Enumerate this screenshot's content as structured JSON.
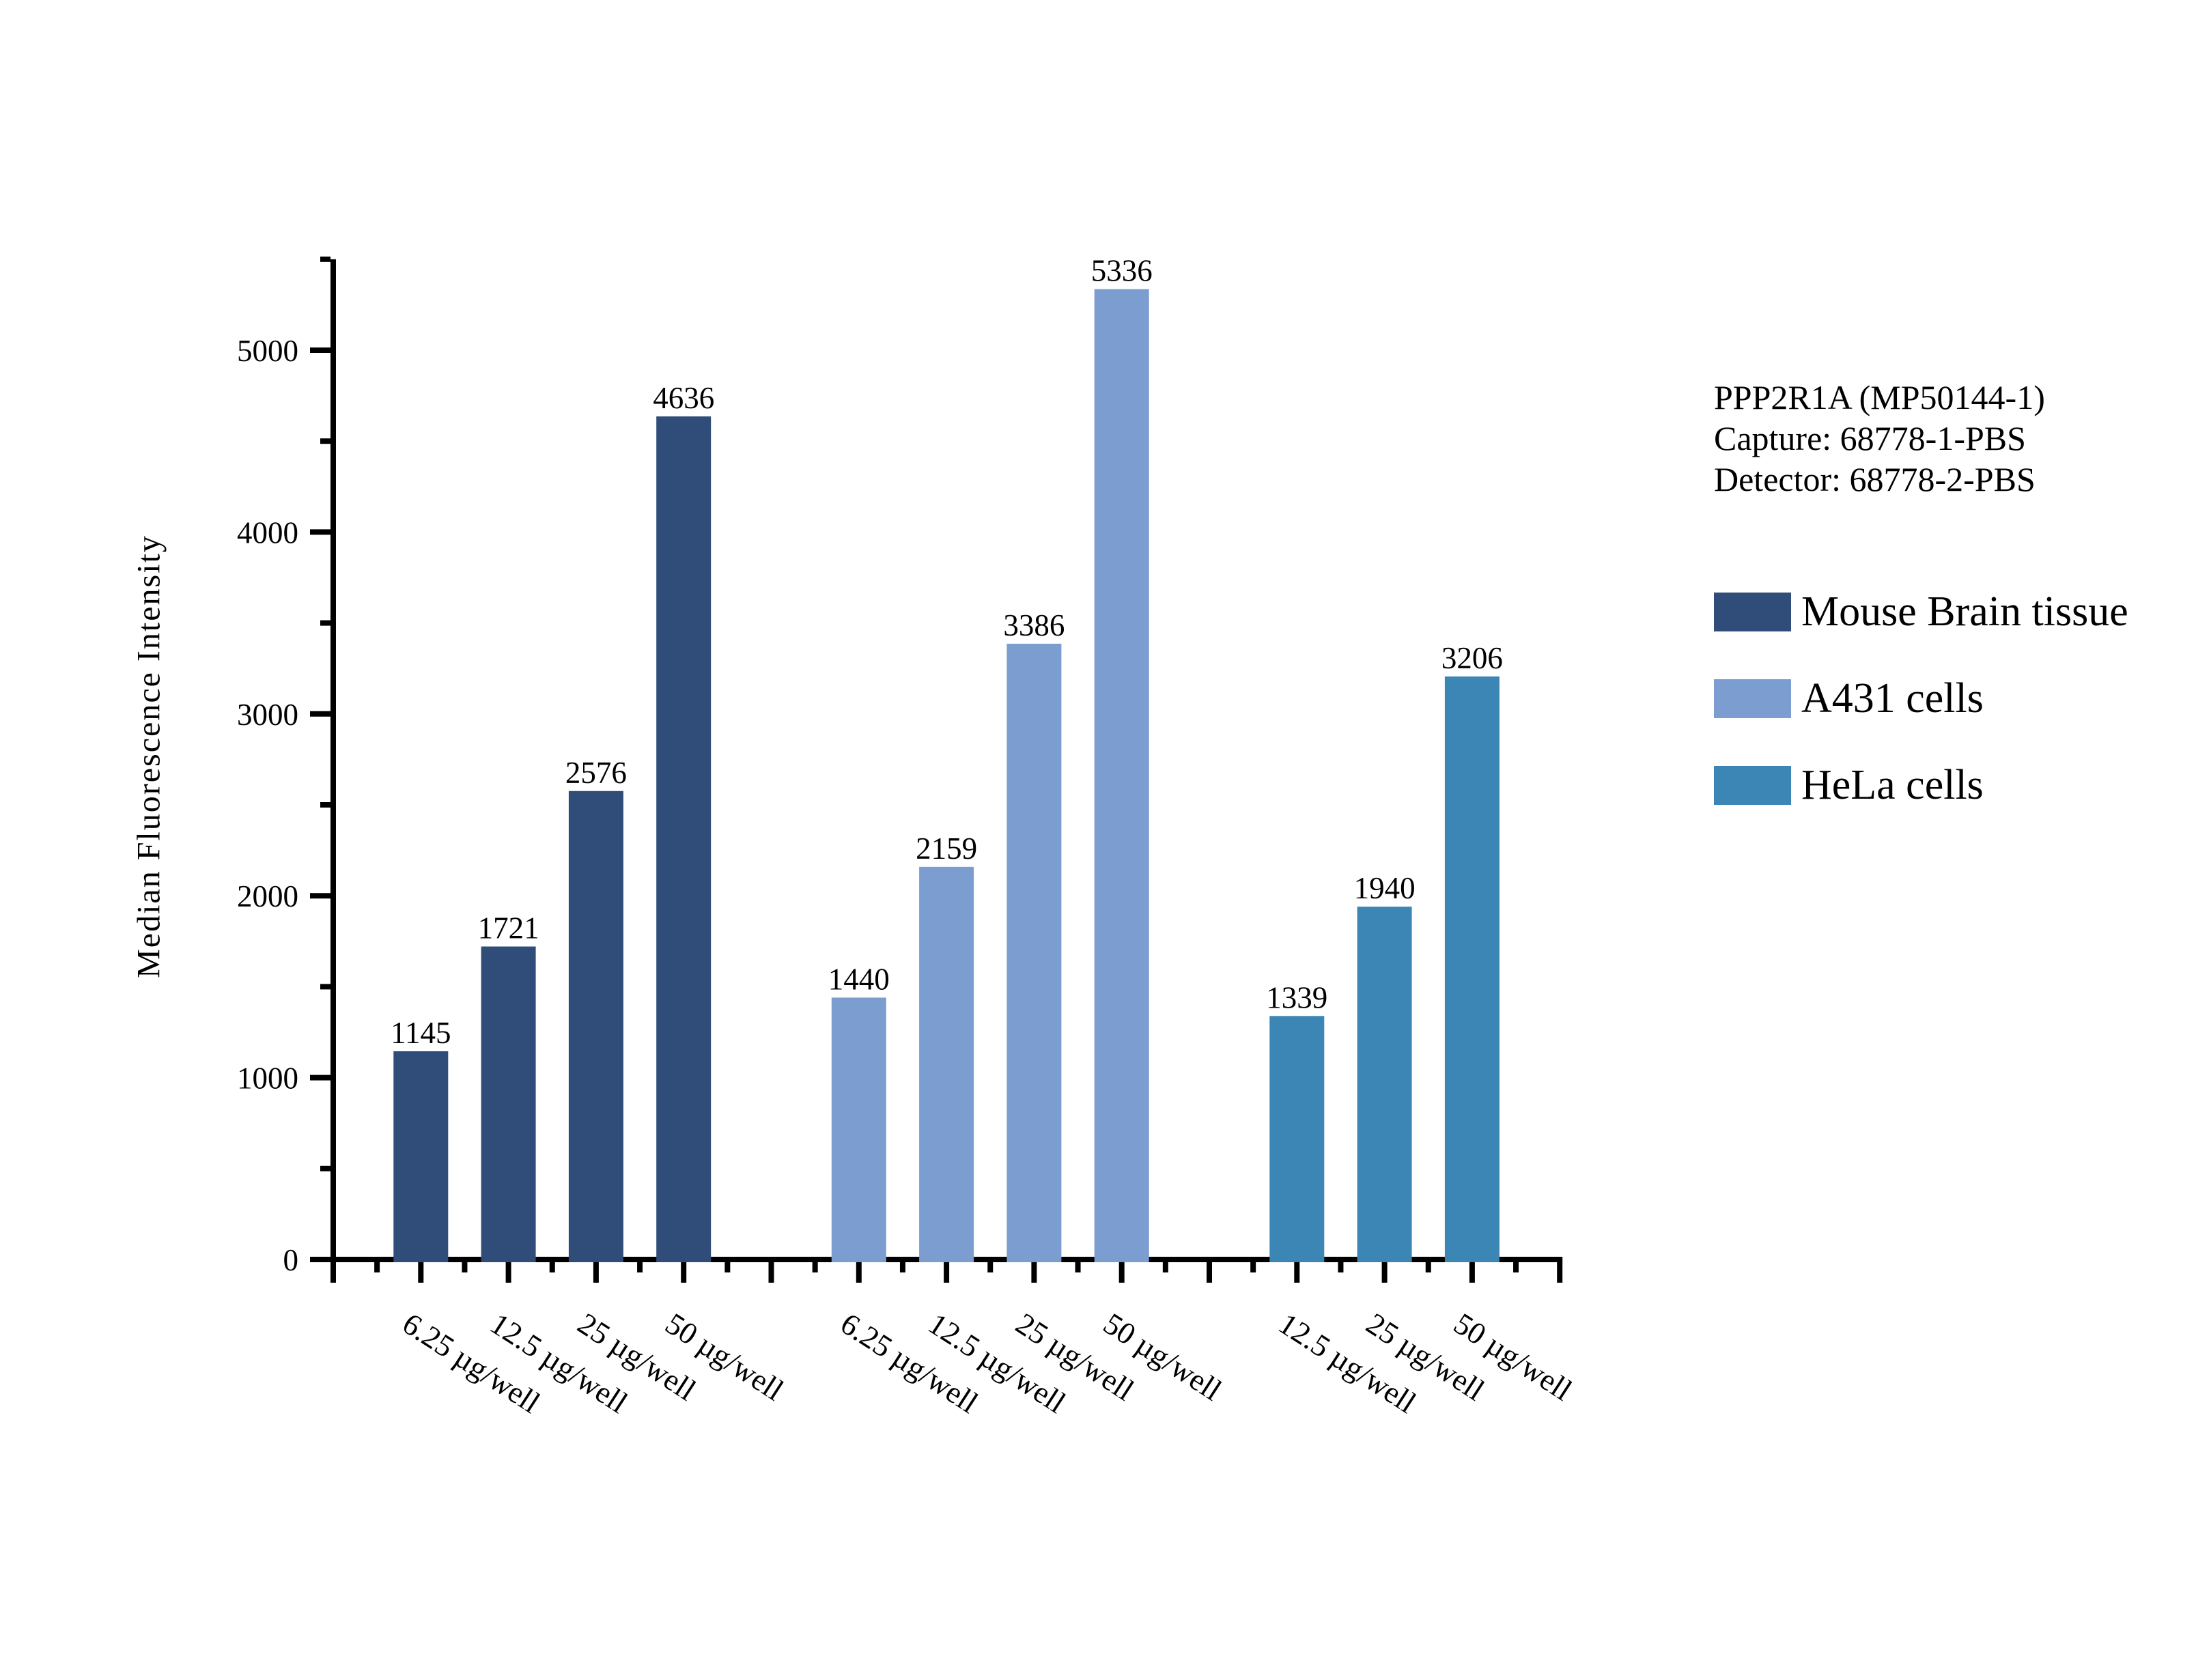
{
  "figure": {
    "background": "#ffffff",
    "axis_color": "#000000"
  },
  "annotation": {
    "line1": "PPP2R1A (MP50144-1)",
    "line2": "Capture: 68778-1-PBS",
    "line3": "Detector: 68778-2-PBS"
  },
  "legend": {
    "entries": [
      {
        "label": "Mouse Brain tissue",
        "color": "#2F4D78"
      },
      {
        "label": "A431 cells",
        "color": "#7C9DD0"
      },
      {
        "label": "HeLa cells",
        "color": "#3C86B5"
      }
    ]
  },
  "chart_data": {
    "type": "bar",
    "title": "",
    "xlabel": "",
    "ylabel": "Median Fluorescence Intensity",
    "ylim": [
      0,
      5500
    ],
    "y_major_ticks": [
      0,
      1000,
      2000,
      3000,
      4000,
      5000
    ],
    "y_minor_step": 500,
    "grid": false,
    "legend_position": "right",
    "bar_value_labels": true,
    "x_tick_label_rotation_deg": 33,
    "series": [
      {
        "name": "Mouse Brain tissue",
        "color": "#2F4D78",
        "categories": [
          "6.25 µg/well",
          "12.5 µg/well",
          "25 µg/well",
          "50 µg/well"
        ],
        "values": [
          1145,
          1721,
          2576,
          4636
        ]
      },
      {
        "name": "A431 cells",
        "color": "#7C9DD0",
        "categories": [
          "6.25 µg/well",
          "12.5 µg/well",
          "25 µg/well",
          "50 µg/well"
        ],
        "values": [
          1440,
          2159,
          3386,
          5336
        ]
      },
      {
        "name": "HeLa cells",
        "color": "#3C86B5",
        "categories": [
          "12.5 µg/well",
          "25 µg/well",
          "50 µg/well"
        ],
        "values": [
          1339,
          1940,
          3206
        ]
      }
    ]
  }
}
